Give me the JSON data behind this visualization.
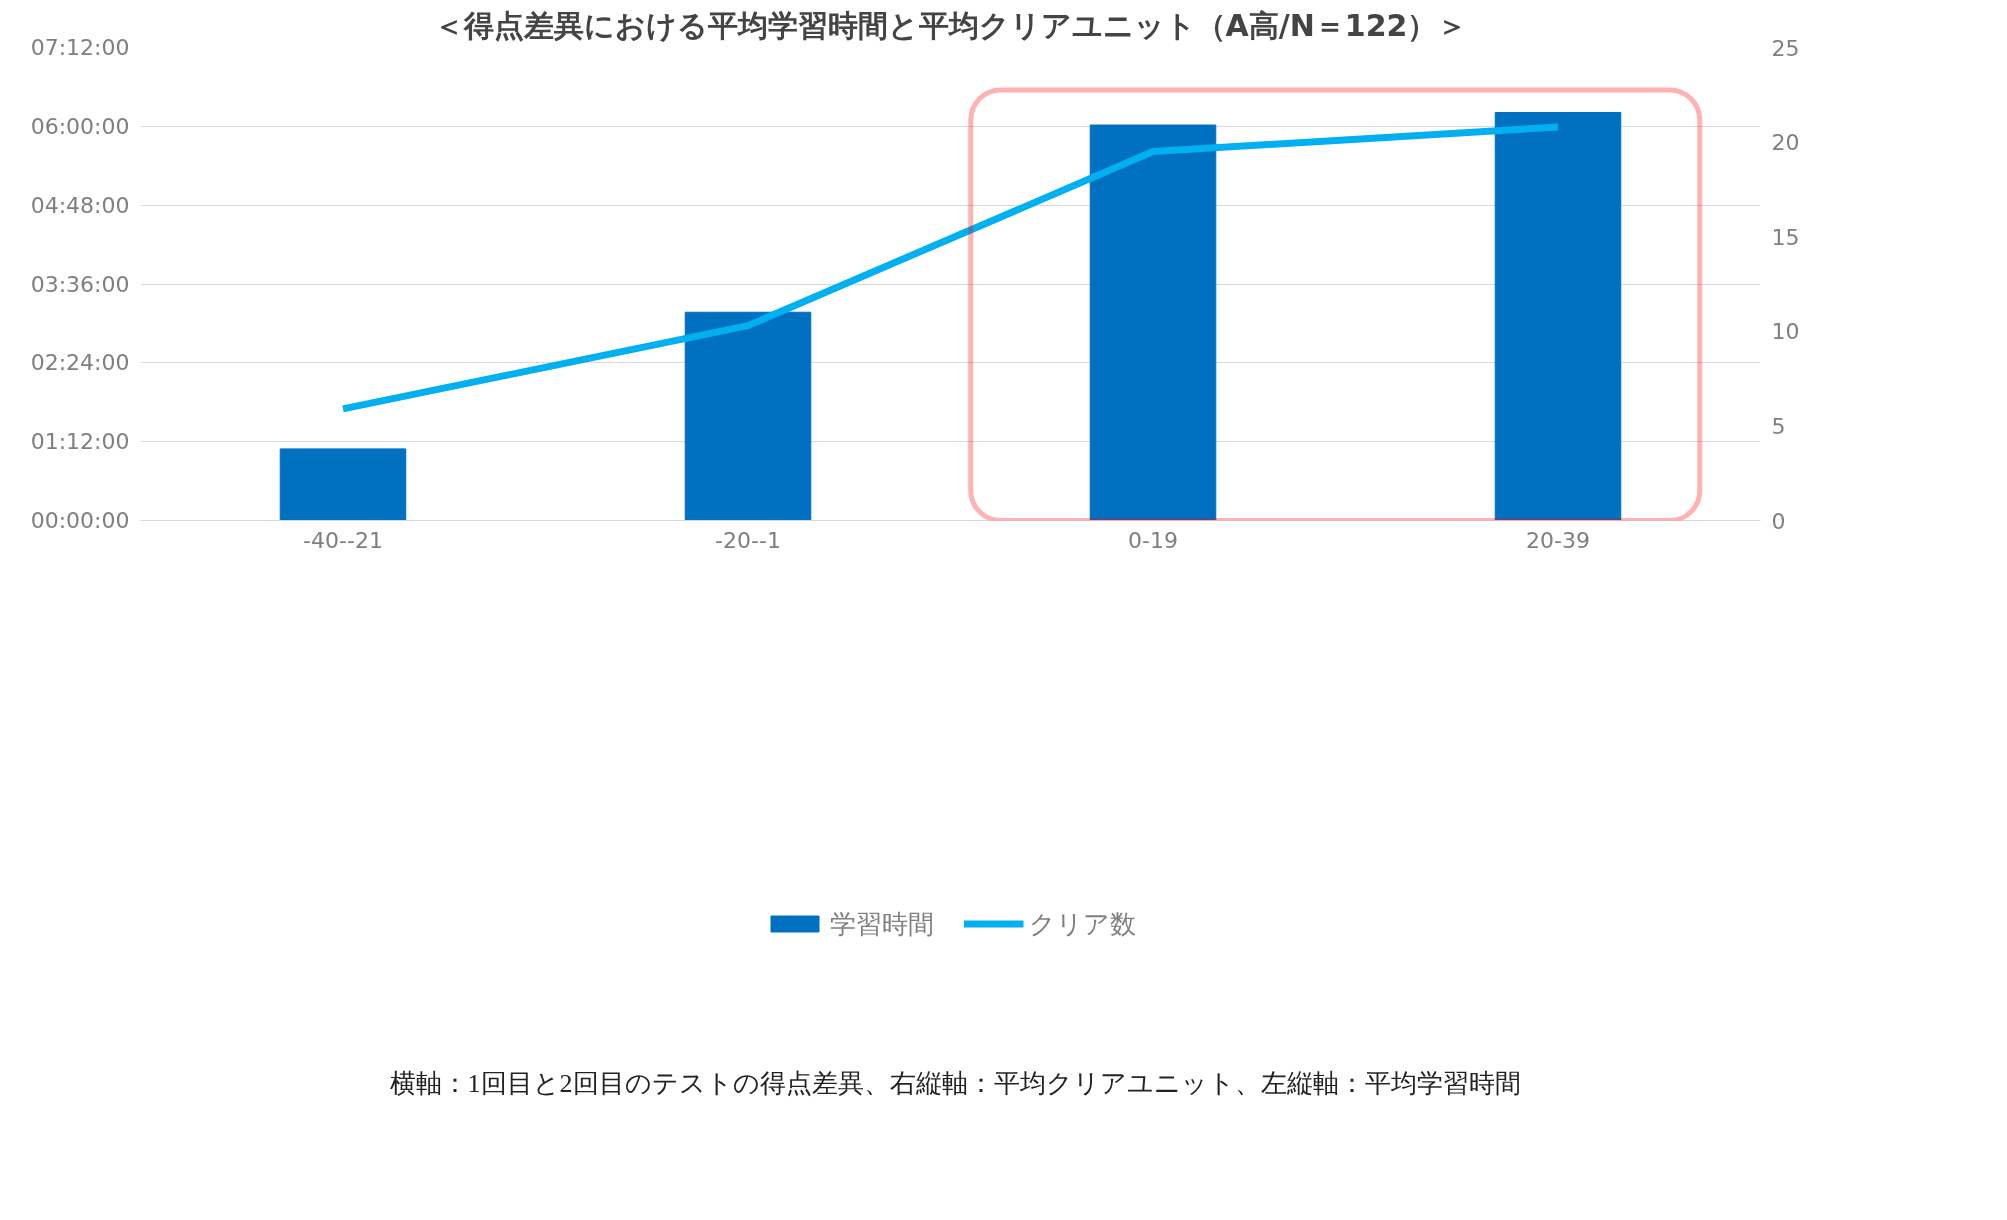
{
  "chart_data": {
    "type": "bar",
    "title": "＜得点差異における平均学習時間と平均クリアユニット（A高/N＝122）＞",
    "categories": [
      "-40--21",
      "-20--1",
      "0-19",
      "20-39"
    ],
    "series": [
      {
        "name": "学習時間",
        "color": "#0070c0",
        "values": [
          1.09,
          3.17,
          6.02,
          6.21
        ]
      },
      {
        "name": "クリア数",
        "type": "line",
        "axis": "y2",
        "color": "#00b0f0",
        "values": [
          5.9,
          10.3,
          19.5,
          20.8
        ]
      }
    ],
    "ylim": [
      0,
      7.2
    ],
    "yticks": [
      {
        "value": 0,
        "label": "00:00:00"
      },
      {
        "value": 1.2,
        "label": "01:12:00"
      },
      {
        "value": 2.4,
        "label": "02:24:00"
      },
      {
        "value": 3.6,
        "label": "03:36:00"
      },
      {
        "value": 4.8,
        "label": "04:48:00"
      },
      {
        "value": 6.0,
        "label": "06:00:00"
      },
      {
        "value": 7.2,
        "label": "07:12:00"
      }
    ],
    "y2lim": [
      0,
      25
    ],
    "y2ticks": [
      0,
      5,
      10,
      15,
      20,
      25
    ],
    "grid": "y",
    "legend": "bottom",
    "marker": "none",
    "line_style": "solid",
    "annotations": [
      "横軸：1回目と2回目のテストの得点差異、右縦軸：平均クリアユニット、左縦軸：平均学習時間"
    ]
  }
}
